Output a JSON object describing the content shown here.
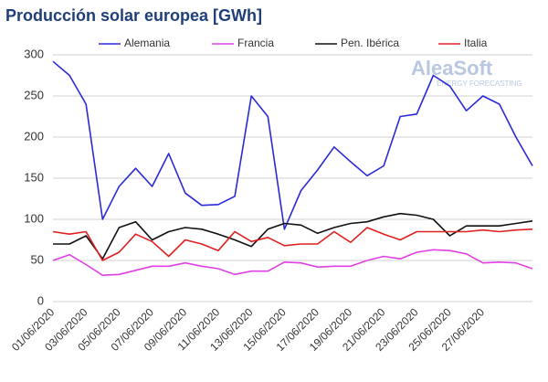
{
  "chart_data": {
    "type": "line",
    "title": "Producción solar europea [GWh]",
    "logo": "AleaSoft",
    "logo_subtitle": "ENERGY FORECASTING",
    "categories": [
      "01/06/2020",
      null,
      "03/06/2020",
      null,
      "05/06/2020",
      null,
      "07/06/2020",
      null,
      "09/06/2020",
      null,
      "11/06/2020",
      null,
      "13/06/2020",
      null,
      "15/06/2020",
      null,
      "17/06/2020",
      null,
      "19/06/2020",
      null,
      "21/06/2020",
      null,
      "23/06/2020",
      null,
      "25/06/2020",
      null,
      "27/06/2020",
      null,
      null,
      null
    ],
    "series": [
      {
        "name": "Alemania",
        "color": "#2a2ad8",
        "values": [
          292,
          275,
          240,
          100,
          140,
          162,
          140,
          180,
          132,
          117,
          118,
          128,
          250,
          225,
          88,
          135,
          160,
          188,
          170,
          153,
          165,
          225,
          228,
          275,
          262,
          232,
          250,
          240,
          200,
          165
        ]
      },
      {
        "name": "Francia",
        "color": "#e040e6",
        "values": [
          50,
          57,
          45,
          32,
          33,
          38,
          43,
          43,
          47,
          43,
          40,
          33,
          37,
          37,
          48,
          47,
          42,
          43,
          43,
          50,
          55,
          52,
          60,
          63,
          62,
          58,
          47,
          48,
          47,
          40
        ]
      },
      {
        "name": "Pen. Ibérica",
        "color": "#111111",
        "values": [
          70,
          70,
          80,
          52,
          90,
          97,
          75,
          85,
          90,
          88,
          82,
          75,
          67,
          88,
          95,
          93,
          83,
          90,
          95,
          97,
          103,
          107,
          105,
          100,
          80,
          92,
          92,
          92,
          95,
          98
        ]
      },
      {
        "name": "Italia",
        "color": "#e02020",
        "values": [
          85,
          82,
          85,
          50,
          60,
          82,
          73,
          55,
          75,
          70,
          62,
          85,
          73,
          78,
          68,
          70,
          70,
          85,
          72,
          90,
          82,
          75,
          85,
          85,
          85,
          85,
          87,
          85,
          87,
          88
        ]
      }
    ],
    "ylim": [
      0,
      300
    ],
    "yticks": [
      0,
      50,
      100,
      150,
      200,
      250,
      300
    ],
    "grid": true
  }
}
